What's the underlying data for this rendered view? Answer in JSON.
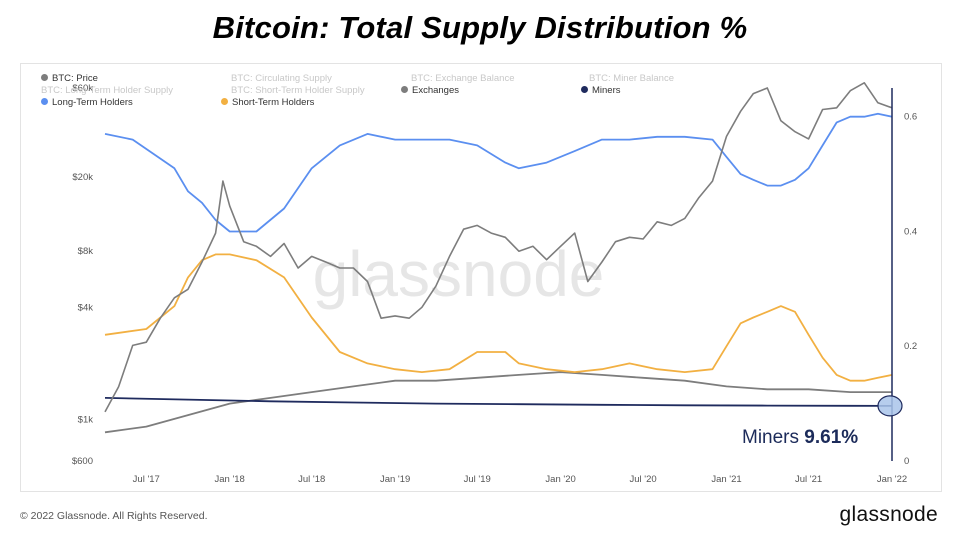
{
  "title": "Bitcoin: Total Supply Distribution %",
  "footer": {
    "copyright": "© 2022 Glassnode. All Rights Reserved.",
    "logo": "glassnode"
  },
  "watermark": "glassnode",
  "callout": {
    "label": "Miners",
    "value": "9.61%"
  },
  "legend": [
    {
      "label": "BTC: Price",
      "color": "#7d7d7d",
      "active": true
    },
    {
      "label": "BTC: Circulating Supply",
      "color": "#cccccc",
      "active": false
    },
    {
      "label": "BTC: Exchange Balance",
      "color": "#cccccc",
      "active": false
    },
    {
      "label": "BTC: Miner Balance",
      "color": "#cccccc",
      "active": false
    },
    {
      "label": "BTC: Long-Term Holder Supply",
      "color": "#cccccc",
      "active": false
    },
    {
      "label": "BTC: Short-Term Holder Supply",
      "color": "#cccccc",
      "active": false
    },
    {
      "label": "Exchanges",
      "color": "#7d7d7d",
      "active": true
    },
    {
      "label": "Miners",
      "color": "#1f2b5e",
      "active": true
    },
    {
      "label": "Long-Term Holders",
      "color": "#5b8ff0",
      "active": true
    },
    {
      "label": "Short-Term Holders",
      "color": "#f2b042",
      "active": true
    }
  ],
  "chart_data": {
    "type": "line",
    "x_ticks": [
      "Jul '17",
      "Jan '18",
      "Jul '18",
      "Jan '19",
      "Jul '19",
      "Jan '20",
      "Jul '20",
      "Jan '21",
      "Jul '21",
      "Jan '22"
    ],
    "x_range": [
      "2017-04",
      "2022-01"
    ],
    "left_axis": {
      "scale": "log",
      "ticks": [
        "$60k",
        "$20k",
        "$8k",
        "$4k",
        "$1k",
        "$600"
      ],
      "tick_values": [
        60000,
        20000,
        8000,
        4000,
        1000,
        600
      ],
      "range": [
        600,
        60000
      ]
    },
    "right_axis": {
      "scale": "linear",
      "ticks": [
        "0.6",
        "0.4",
        "0.2",
        "0"
      ],
      "tick_values": [
        0.6,
        0.4,
        0.2,
        0
      ],
      "range": [
        0,
        0.65
      ]
    },
    "series": [
      {
        "name": "BTC: Price",
        "axis": "left",
        "color": "#7d7d7d",
        "x": [
          "2017-04",
          "2017-05",
          "2017-06",
          "2017-07",
          "2017-08",
          "2017-09",
          "2017-10",
          "2017-11",
          "2017-12-01",
          "2017-12-17",
          "2018-01",
          "2018-02",
          "2018-03",
          "2018-04",
          "2018-05",
          "2018-06",
          "2018-07",
          "2018-08",
          "2018-09",
          "2018-10",
          "2018-11",
          "2018-12",
          "2019-01",
          "2019-02",
          "2019-03",
          "2019-04",
          "2019-05",
          "2019-06",
          "2019-07",
          "2019-08",
          "2019-09",
          "2019-10",
          "2019-11",
          "2019-12",
          "2020-01",
          "2020-02",
          "2020-03",
          "2020-04",
          "2020-05",
          "2020-06",
          "2020-07",
          "2020-08",
          "2020-09",
          "2020-10",
          "2020-11",
          "2020-12",
          "2021-01",
          "2021-02",
          "2021-03",
          "2021-04",
          "2021-05",
          "2021-06",
          "2021-07",
          "2021-08",
          "2021-09",
          "2021-10",
          "2021-11",
          "2021-12",
          "2022-01"
        ],
        "values": [
          1100,
          1500,
          2500,
          2600,
          3500,
          4500,
          5000,
          7000,
          10000,
          19000,
          14000,
          9000,
          8500,
          7500,
          8800,
          6500,
          7500,
          7000,
          6500,
          6500,
          5500,
          3500,
          3600,
          3500,
          4000,
          5200,
          7500,
          10500,
          11000,
          10000,
          9500,
          8000,
          8500,
          7200,
          8500,
          10000,
          5500,
          7000,
          9000,
          9500,
          9300,
          11500,
          11000,
          12000,
          15500,
          19000,
          33000,
          45000,
          56000,
          60000,
          40000,
          35000,
          32000,
          46000,
          47000,
          58000,
          64000,
          50000,
          47000
        ]
      },
      {
        "name": "Long-Term Holders",
        "axis": "right",
        "color": "#5b8ff0",
        "x": [
          "2017-04",
          "2017-06",
          "2017-09",
          "2017-10",
          "2017-11",
          "2017-12",
          "2018-01",
          "2018-03",
          "2018-05",
          "2018-07",
          "2018-09",
          "2018-11",
          "2019-01",
          "2019-03",
          "2019-05",
          "2019-07",
          "2019-09",
          "2019-10",
          "2019-12",
          "2020-02",
          "2020-04",
          "2020-06",
          "2020-08",
          "2020-10",
          "2020-12",
          "2021-01",
          "2021-02",
          "2021-03",
          "2021-04",
          "2021-05",
          "2021-06",
          "2021-07",
          "2021-08",
          "2021-09",
          "2021-10",
          "2021-11",
          "2021-12",
          "2022-01"
        ],
        "values": [
          0.57,
          0.56,
          0.51,
          0.47,
          0.45,
          0.42,
          0.4,
          0.4,
          0.44,
          0.51,
          0.55,
          0.57,
          0.56,
          0.56,
          0.56,
          0.55,
          0.52,
          0.51,
          0.52,
          0.54,
          0.56,
          0.56,
          0.565,
          0.565,
          0.56,
          0.53,
          0.5,
          0.49,
          0.48,
          0.48,
          0.49,
          0.51,
          0.55,
          0.59,
          0.6,
          0.6,
          0.605,
          0.6
        ]
      },
      {
        "name": "Short-Term Holders",
        "axis": "right",
        "color": "#f2b042",
        "x": [
          "2017-04",
          "2017-07",
          "2017-09",
          "2017-10",
          "2017-11",
          "2017-12",
          "2018-01",
          "2018-03",
          "2018-05",
          "2018-07",
          "2018-09",
          "2018-11",
          "2019-01",
          "2019-03",
          "2019-05",
          "2019-07",
          "2019-09",
          "2019-10",
          "2019-12",
          "2020-02",
          "2020-04",
          "2020-06",
          "2020-08",
          "2020-10",
          "2020-12",
          "2021-01",
          "2021-02",
          "2021-03",
          "2021-04",
          "2021-05",
          "2021-06",
          "2021-07",
          "2021-08",
          "2021-09",
          "2021-10",
          "2021-11",
          "2021-12",
          "2022-01"
        ],
        "values": [
          0.22,
          0.23,
          0.27,
          0.32,
          0.35,
          0.36,
          0.36,
          0.35,
          0.32,
          0.25,
          0.19,
          0.17,
          0.16,
          0.155,
          0.16,
          0.19,
          0.19,
          0.17,
          0.16,
          0.155,
          0.16,
          0.17,
          0.16,
          0.155,
          0.16,
          0.2,
          0.24,
          0.25,
          0.26,
          0.27,
          0.26,
          0.22,
          0.18,
          0.15,
          0.14,
          0.14,
          0.145,
          0.15
        ]
      },
      {
        "name": "Exchanges",
        "axis": "right",
        "color": "#7d7d7d",
        "x": [
          "2017-04",
          "2017-07",
          "2017-10",
          "2018-01",
          "2018-04",
          "2018-07",
          "2018-10",
          "2019-01",
          "2019-04",
          "2019-07",
          "2019-10",
          "2020-01",
          "2020-04",
          "2020-07",
          "2020-10",
          "2021-01",
          "2021-04",
          "2021-07",
          "2021-10",
          "2022-01"
        ],
        "values": [
          0.05,
          0.06,
          0.08,
          0.1,
          0.11,
          0.12,
          0.13,
          0.14,
          0.14,
          0.145,
          0.15,
          0.155,
          0.15,
          0.145,
          0.14,
          0.13,
          0.125,
          0.125,
          0.12,
          0.12
        ]
      },
      {
        "name": "Miners",
        "axis": "right",
        "color": "#1f2b5e",
        "x": [
          "2017-04",
          "2017-10",
          "2018-04",
          "2018-10",
          "2019-04",
          "2019-10",
          "2020-04",
          "2020-10",
          "2021-04",
          "2021-10",
          "2022-01"
        ],
        "values": [
          0.11,
          0.107,
          0.104,
          0.102,
          0.1,
          0.099,
          0.098,
          0.097,
          0.0965,
          0.0962,
          0.0961
        ]
      }
    ]
  }
}
